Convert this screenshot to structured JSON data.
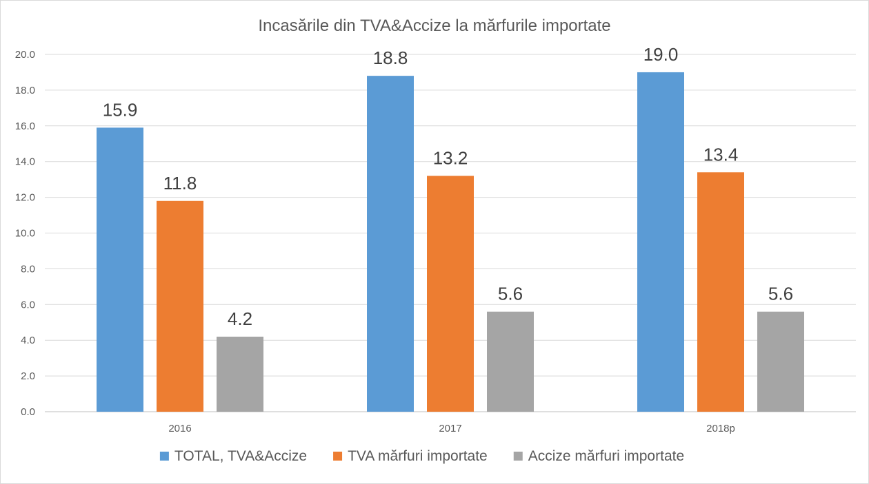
{
  "chart_data": {
    "type": "bar",
    "title": "Incasările din TVA&Accize la mărfurile importate",
    "xlabel": "",
    "ylabel": "",
    "categories": [
      "2016",
      "2017",
      "2018p"
    ],
    "series": [
      {
        "name": "TOTAL, TVA&Accize",
        "color": "#5b9bd5",
        "values": [
          15.9,
          18.8,
          19.0
        ],
        "labels": [
          "15.9",
          "18.8",
          "19.0"
        ]
      },
      {
        "name": "TVA mărfuri importate",
        "color": "#ed7d31",
        "values": [
          11.8,
          13.2,
          13.4
        ],
        "labels": [
          "11.8",
          "13.2",
          "13.4"
        ]
      },
      {
        "name": "Accize mărfuri importate",
        "color": "#a5a5a5",
        "values": [
          4.2,
          5.6,
          5.6
        ],
        "labels": [
          "4.2",
          "5.6",
          "5.6"
        ]
      }
    ],
    "ylim": [
      0,
      20
    ],
    "yticks": [
      "0.0",
      "2.0",
      "4.0",
      "6.0",
      "8.0",
      "10.0",
      "12.0",
      "14.0",
      "16.0",
      "18.0",
      "20.0"
    ],
    "grid": true,
    "legend": "bottom"
  }
}
